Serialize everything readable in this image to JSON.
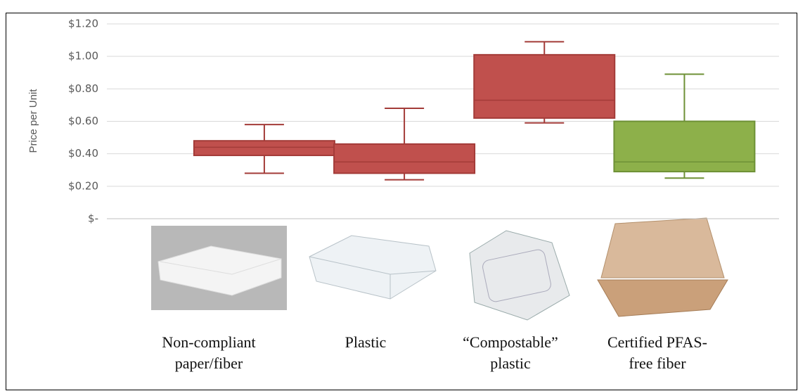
{
  "chart_data": {
    "type": "box",
    "y_label": "Price per Unit",
    "categories": [
      "Non-compliant\npaper/fiber",
      "Plastic",
      "“Compostable”\nplastic",
      "Certified PFAS-\nfree fiber"
    ],
    "boxes": [
      {
        "min": 0.28,
        "q1": 0.39,
        "median": 0.44,
        "q3": 0.48,
        "max": 0.58,
        "color": "#c0504d"
      },
      {
        "min": 0.24,
        "q1": 0.28,
        "median": 0.35,
        "q3": 0.46,
        "max": 0.68,
        "color": "#c0504d"
      },
      {
        "min": 0.59,
        "q1": 0.62,
        "median": 0.73,
        "q3": 1.01,
        "max": 1.09,
        "color": "#c0504d"
      },
      {
        "min": 0.25,
        "q1": 0.29,
        "median": 0.35,
        "q3": 0.6,
        "max": 0.89,
        "color": "#8db04a"
      }
    ],
    "ylim": [
      0,
      1.2
    ],
    "yticks": [
      {
        "value": 0,
        "label": "$-"
      },
      {
        "value": 0.2,
        "label": "$0.20"
      },
      {
        "value": 0.4,
        "label": "$0.40"
      },
      {
        "value": 0.6,
        "label": "$0.60"
      },
      {
        "value": 0.8,
        "label": "$0.80"
      },
      {
        "value": 1.0,
        "label": "$1.00"
      },
      {
        "value": 1.2,
        "label": "$1.20"
      }
    ],
    "grid": true
  }
}
